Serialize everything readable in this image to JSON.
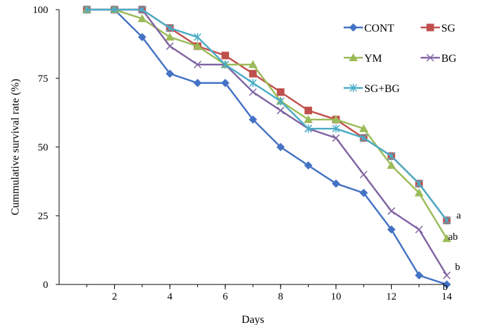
{
  "chart_data": {
    "type": "line",
    "title": "",
    "xlabel": "Days",
    "ylabel": "Cummulative survival rate (%)",
    "x": [
      1,
      2,
      3,
      4,
      5,
      6,
      7,
      8,
      9,
      10,
      11,
      12,
      13,
      14
    ],
    "x_ticks": [
      2,
      4,
      6,
      8,
      10,
      12,
      14
    ],
    "y_ticks": [
      0,
      25,
      50,
      75,
      100
    ],
    "xlim": [
      0,
      14
    ],
    "ylim": [
      0,
      100
    ],
    "grid": false,
    "legend_position": "top-right",
    "series": [
      {
        "name": "CONT",
        "color": "#4472c4",
        "marker": "diamond",
        "values": [
          100,
          100,
          90,
          76.7,
          73.3,
          73.3,
          60,
          50,
          43.3,
          36.7,
          33.3,
          20,
          3.3,
          0
        ]
      },
      {
        "name": "SG",
        "color": "#c0504d",
        "marker": "square",
        "values": [
          100,
          100,
          100,
          93.3,
          86.7,
          83.3,
          76.7,
          70,
          63.3,
          60,
          53.3,
          46.7,
          36.7,
          23.3
        ]
      },
      {
        "name": "YM",
        "color": "#9bbb59",
        "marker": "triangle",
        "values": [
          100,
          100,
          96.7,
          90,
          86.7,
          80,
          80,
          66.7,
          60,
          60,
          56.7,
          43.3,
          33.3,
          16.7
        ]
      },
      {
        "name": "BG",
        "color": "#8064a2",
        "marker": "x",
        "values": [
          100,
          100,
          100,
          86.7,
          80,
          80,
          70,
          63.3,
          56.7,
          53.3,
          40,
          26.7,
          20,
          3.3
        ]
      },
      {
        "name": "SG+BG",
        "color": "#4bacc6",
        "marker": "star",
        "values": [
          100,
          100,
          100,
          93.3,
          90,
          80,
          73.3,
          66.7,
          56.7,
          56.7,
          53.3,
          46.7,
          36.7,
          23.3
        ]
      }
    ],
    "annotations": [
      {
        "text": "a",
        "x": 14,
        "y": 23.3
      },
      {
        "text": "ab",
        "x": 14,
        "y": 16.7
      },
      {
        "text": "b",
        "x": 14,
        "y": 3.3
      },
      {
        "text": "b",
        "x": 14,
        "y": 0
      }
    ]
  }
}
